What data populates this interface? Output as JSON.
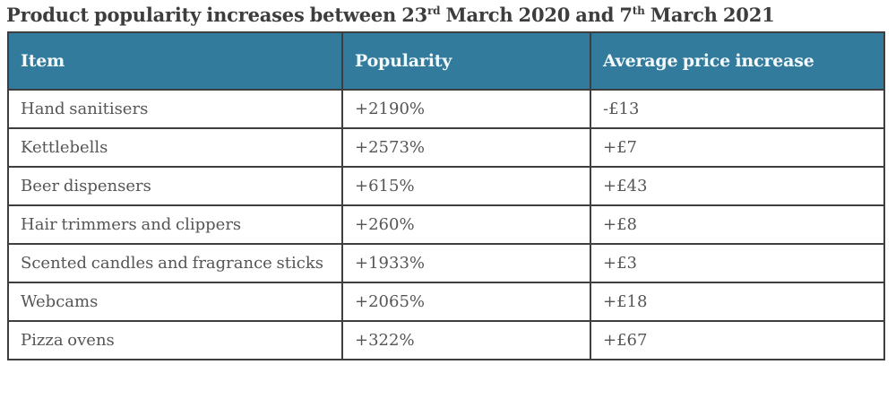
{
  "title": {
    "part1": "Product popularity increases between 23",
    "sup1": "rd",
    "part2": " March 2020 and 7",
    "sup2": "th",
    "part3": " March 2021"
  },
  "table": {
    "columns": [
      "Item",
      "Popularity",
      "Average price increase"
    ],
    "rows": [
      {
        "item": "Hand sanitisers",
        "popularity": "+2190%",
        "price": "-£13"
      },
      {
        "item": "Kettlebells",
        "popularity": "+2573%",
        "price": "+£7"
      },
      {
        "item": "Beer dispensers",
        "popularity": "+615%",
        "price": "+£43"
      },
      {
        "item": "Hair trimmers and clippers",
        "popularity": "+260%",
        "price": "+£8"
      },
      {
        "item": "Scented candles and fragrance sticks",
        "popularity": "+1933%",
        "price": "+£3"
      },
      {
        "item": "Webcams",
        "popularity": "+2065%",
        "price": "+£18"
      },
      {
        "item": "Pizza ovens",
        "popularity": "+322%",
        "price": "+£67"
      }
    ]
  },
  "colors": {
    "header_background": "#337b9c",
    "header_text": "#f4fafc",
    "body_text": "#555555",
    "title_text": "#3d3d3d",
    "border": "#3e3e3e"
  },
  "chart_data": {
    "type": "table",
    "title": "Product popularity increases between 23rd March 2020 and 7th March 2021",
    "columns": [
      "Item",
      "Popularity",
      "Average price increase"
    ],
    "rows": [
      [
        "Hand sanitisers",
        "+2190%",
        "-£13"
      ],
      [
        "Kettlebells",
        "+2573%",
        "+£7"
      ],
      [
        "Beer dispensers",
        "+615%",
        "+£43"
      ],
      [
        "Hair trimmers and clippers",
        "+260%",
        "+£8"
      ],
      [
        "Scented candles and fragrance sticks",
        "+1933%",
        "+£3"
      ],
      [
        "Webcams",
        "+2065%",
        "+£18"
      ],
      [
        "Pizza ovens",
        "+322%",
        "+£67"
      ]
    ]
  }
}
